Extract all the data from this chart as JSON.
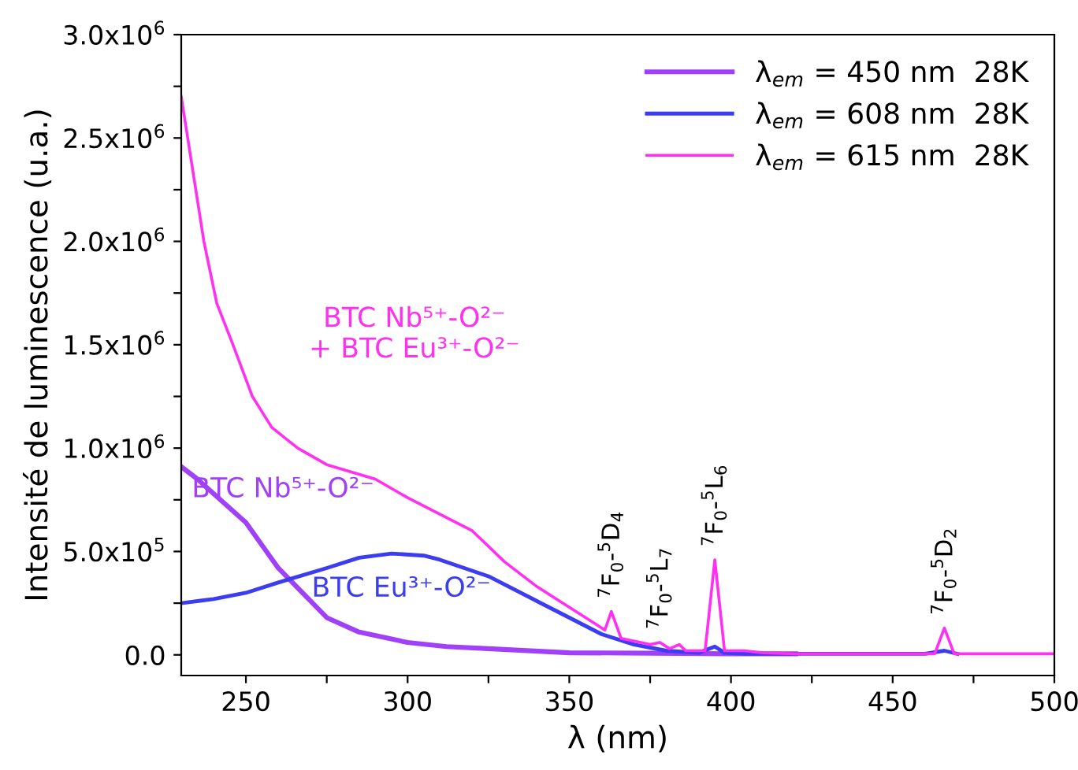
{
  "chart_data": {
    "type": "line",
    "xlabel": "λ (nm)",
    "ylabel": "Intensité de luminescence (u.a.)",
    "xlim": [
      230,
      500
    ],
    "ylim": [
      -100000,
      3000000
    ],
    "xticks": [
      {
        "value": 250,
        "label": "250"
      },
      {
        "value": 275,
        "label": null
      },
      {
        "value": 300,
        "label": "300"
      },
      {
        "value": 325,
        "label": null
      },
      {
        "value": 350,
        "label": "350"
      },
      {
        "value": 375,
        "label": null
      },
      {
        "value": 400,
        "label": "400"
      },
      {
        "value": 425,
        "label": null
      },
      {
        "value": 450,
        "label": "450"
      },
      {
        "value": 475,
        "label": null
      },
      {
        "value": 500,
        "label": "500"
      }
    ],
    "yticks": [
      {
        "value": 0,
        "label": "0.0"
      },
      {
        "value": 250000,
        "label": null
      },
      {
        "value": 500000,
        "label": "5.0x10$^{5}$"
      },
      {
        "value": 750000,
        "label": null
      },
      {
        "value": 1000000,
        "label": "1.0x10$^{6}$"
      },
      {
        "value": 1250000,
        "label": null
      },
      {
        "value": 1500000,
        "label": "1.5x10$^{6}$"
      },
      {
        "value": 1750000,
        "label": null
      },
      {
        "value": 2000000,
        "label": "2.0x10$^{6}$"
      },
      {
        "value": 2250000,
        "label": null
      },
      {
        "value": 2500000,
        "label": "2.5x10$^{6}$"
      },
      {
        "value": 2750000,
        "label": null
      },
      {
        "value": 3000000,
        "label": "3.0x10$^{6}$"
      }
    ],
    "grid": false,
    "legend": "top right",
    "series": [
      {
        "name": "λ$_{em}$ = 450 nm  28K",
        "color": "#a040f8",
        "x": [
          230,
          235,
          240,
          250,
          260,
          270,
          275,
          285,
          300,
          312,
          325,
          350,
          375,
          400,
          420
        ],
        "values": [
          910000,
          850000,
          780000,
          640000,
          420000,
          260000,
          180000,
          110000,
          60000,
          40000,
          30000,
          10000,
          8000,
          5000,
          5000
        ]
      },
      {
        "name": "λ$_{em}$ = 608 nm  28K",
        "color": "#3c3cf0",
        "x": [
          230,
          240,
          250,
          260,
          275,
          285,
          295,
          305,
          310,
          325,
          340,
          350,
          360,
          370,
          380,
          390,
          395,
          398,
          405,
          420,
          460,
          466,
          470
        ],
        "values": [
          250000,
          270000,
          300000,
          350000,
          420000,
          470000,
          490000,
          480000,
          460000,
          380000,
          260000,
          180000,
          100000,
          50000,
          20000,
          10000,
          40000,
          10000,
          5000,
          5000,
          5000,
          20000,
          5000
        ]
      },
      {
        "name": "λ$_{em}$ = 615 nm  28K",
        "color": "#ff30f0",
        "x": [
          230,
          232,
          237,
          241,
          246,
          252,
          258,
          266,
          275,
          290,
          300,
          320,
          330,
          340,
          350,
          356,
          361,
          363,
          366,
          375,
          378,
          381,
          384,
          386,
          392,
          395,
          398,
          404,
          410,
          420,
          460,
          463,
          466,
          469,
          500
        ],
        "values": [
          2700000,
          2500000,
          2000000,
          1700000,
          1500000,
          1250000,
          1100000,
          1000000,
          920000,
          850000,
          760000,
          600000,
          450000,
          330000,
          230000,
          170000,
          120000,
          210000,
          80000,
          50000,
          60000,
          30000,
          50000,
          20000,
          20000,
          460000,
          20000,
          20000,
          10000,
          5000,
          5000,
          5000,
          130000,
          5000,
          5000
        ]
      }
    ],
    "annotations": [
      "BTC Nb⁵⁺-O²⁻",
      "BTC Eu³⁺-O²⁻",
      "BTC Nb⁵⁺-O²⁻\n+ BTC Eu³⁺-O²⁻",
      {
        "text": "$^{7}$F$_{0}$-$^{5}$D$_{4}$",
        "x": 363,
        "y": 210000
      },
      {
        "text": "$^{7}$F$_{0}$-$^{5}$L$_{7}$",
        "x": 378,
        "y": 60000
      },
      {
        "text": "$^{7}$F$_{0}$-$^{5}$L$_{6}$",
        "x": 395,
        "y": 460000
      },
      {
        "text": "$^{7}$F$_{0}$-$^{5}$D$_{2}$",
        "x": 466,
        "y": 130000
      }
    ]
  }
}
